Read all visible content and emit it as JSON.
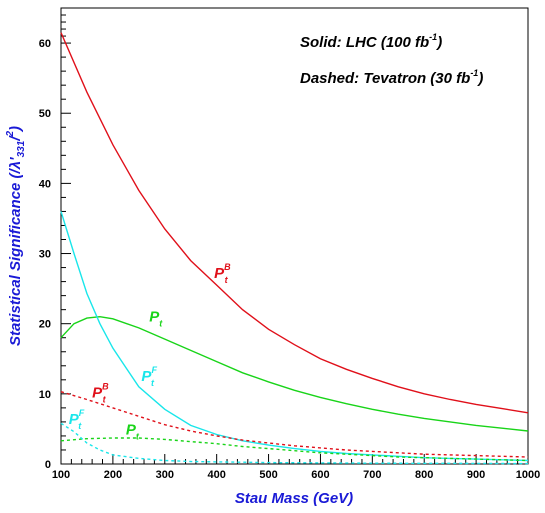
{
  "chart_data": {
    "type": "line",
    "xlabel": "Stau Mass (GeV)",
    "ylabel": "Statistical Significance (",
    "ylabel_math": "/λ'",
    "ylabel_sub": "331",
    "ylabel_close": "/",
    "ylabel_sup": "2",
    "ylabel_end": ")",
    "xlim": [
      100,
      1000
    ],
    "ylim": [
      0,
      65
    ],
    "xticks": [
      100,
      200,
      300,
      400,
      500,
      600,
      700,
      800,
      900,
      1000
    ],
    "yticks": [
      0,
      10,
      20,
      30,
      40,
      50,
      60
    ],
    "annotations": [
      {
        "text": "Solid: LHC (100 fb",
        "sup": "-1",
        "close": ")"
      },
      {
        "text": "Dashed: Tevatron (30 fb",
        "sup": "-1",
        "close": ")"
      }
    ],
    "series": [
      {
        "name": "P",
        "sub": "t",
        "sup": "B",
        "dataset": "LHC",
        "style": "solid",
        "color": "#e0101a",
        "x": [
          100,
          150,
          200,
          250,
          300,
          350,
          400,
          450,
          500,
          550,
          600,
          650,
          700,
          750,
          800,
          850,
          900,
          950,
          1000
        ],
        "y": [
          61.5,
          53,
          45.5,
          39,
          33.5,
          29,
          25.5,
          22,
          19.2,
          17,
          15,
          13.5,
          12.2,
          11,
          10,
          9.2,
          8.5,
          7.9,
          7.3
        ]
      },
      {
        "name": "P",
        "sub": "t",
        "sup": "",
        "dataset": "LHC",
        "style": "solid",
        "color": "#19d419",
        "x": [
          100,
          125,
          150,
          175,
          200,
          250,
          300,
          350,
          400,
          450,
          500,
          550,
          600,
          650,
          700,
          750,
          800,
          850,
          900,
          950,
          1000
        ],
        "y": [
          18,
          20,
          20.8,
          21,
          20.7,
          19.4,
          17.8,
          16.2,
          14.6,
          13,
          11.7,
          10.5,
          9.5,
          8.6,
          7.8,
          7.1,
          6.5,
          6,
          5.5,
          5.1,
          4.7
        ]
      },
      {
        "name": "P",
        "sub": "t",
        "sup": "F",
        "dataset": "LHC",
        "style": "solid",
        "color": "#19e6ea",
        "x": [
          100,
          125,
          150,
          175,
          200,
          250,
          300,
          350,
          400,
          450,
          500,
          550,
          600,
          650,
          700,
          750,
          800,
          850,
          900,
          950,
          1000
        ],
        "y": [
          36,
          30,
          24.3,
          20,
          16.5,
          11,
          7.8,
          5.5,
          4.2,
          3.3,
          2.7,
          2.2,
          1.8,
          1.5,
          1.3,
          1.1,
          0.9,
          0.8,
          0.7,
          0.6,
          0.5
        ]
      },
      {
        "name": "P",
        "sub": "t",
        "sup": "B",
        "dataset": "Tevatron",
        "style": "dashed",
        "color": "#e0101a",
        "x": [
          100,
          150,
          200,
          250,
          300,
          350,
          400,
          450,
          500,
          550,
          600,
          650,
          700,
          750,
          800,
          850,
          900,
          950,
          1000
        ],
        "y": [
          10.3,
          9.2,
          8,
          6.8,
          5.6,
          4.7,
          4.0,
          3.4,
          3.0,
          2.6,
          2.3,
          2.0,
          1.8,
          1.6,
          1.4,
          1.3,
          1.2,
          1.1,
          1.0
        ]
      },
      {
        "name": "P",
        "sub": "t",
        "sup": "",
        "dataset": "Tevatron",
        "style": "dashed",
        "color": "#19d419",
        "x": [
          100,
          150,
          200,
          250,
          300,
          350,
          400,
          450,
          500,
          550,
          600,
          650,
          700,
          750,
          800,
          850,
          900,
          950,
          1000
        ],
        "y": [
          3.3,
          3.6,
          3.7,
          3.7,
          3.5,
          3.2,
          2.9,
          2.5,
          2.2,
          1.9,
          1.6,
          1.4,
          1.2,
          1.0,
          0.9,
          0.8,
          0.7,
          0.6,
          0.5
        ]
      },
      {
        "name": "P",
        "sub": "t",
        "sup": "F",
        "dataset": "Tevatron",
        "style": "dashed",
        "color": "#19e6ea",
        "x": [
          100,
          125,
          150,
          175,
          200,
          250,
          300,
          350,
          400,
          450,
          500,
          600,
          700,
          800,
          900,
          1000
        ],
        "y": [
          5.8,
          4.6,
          3.0,
          2.0,
          1.3,
          0.8,
          0.5,
          0.35,
          0.3,
          0.25,
          0.2,
          0.15,
          0.12,
          0.1,
          0.08,
          0.06
        ]
      }
    ],
    "labels": [
      {
        "series": 0,
        "x": 395,
        "y": 26.5
      },
      {
        "series": 1,
        "x": 270,
        "y": 20.3
      },
      {
        "series": 2,
        "x": 255,
        "y": 11.8
      },
      {
        "series": 3,
        "x": 160,
        "y": 9.5
      },
      {
        "series": 4,
        "x": 225,
        "y": 4.2
      },
      {
        "series": 5,
        "x": 115,
        "y": 5.7
      }
    ]
  }
}
